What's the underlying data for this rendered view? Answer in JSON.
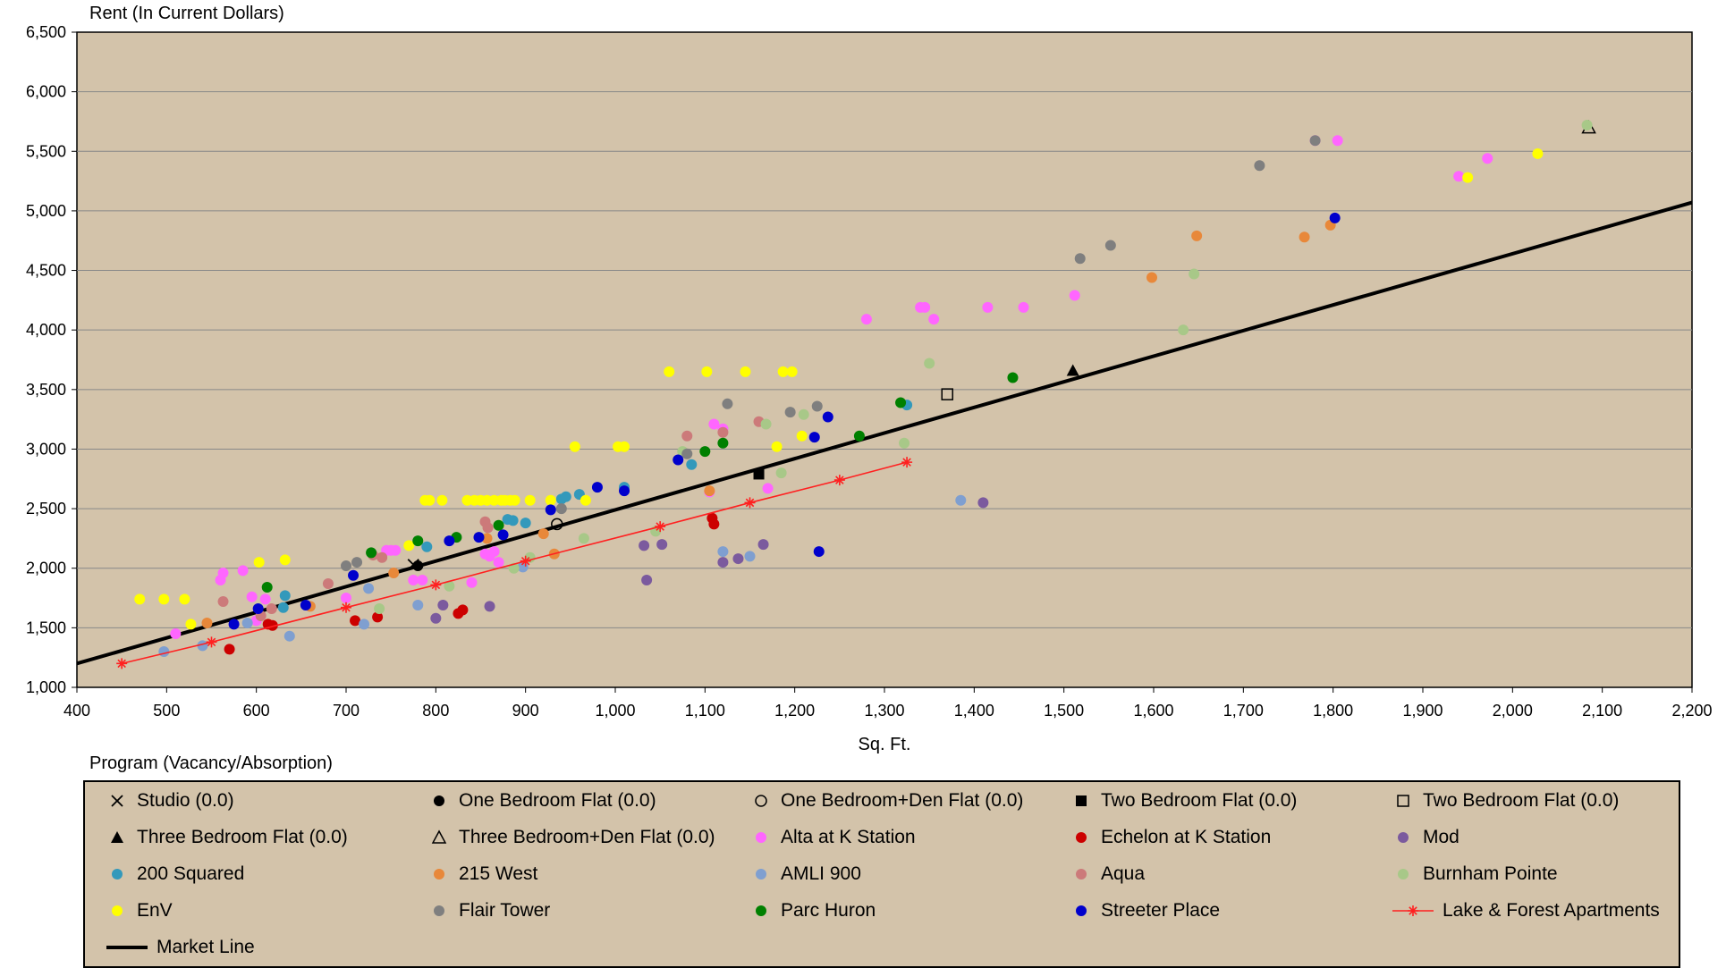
{
  "chart_data": {
    "type": "scatter",
    "ylabel": "Rent (In Current Dollars)",
    "xlabel": "Sq. Ft.",
    "xlim": [
      400,
      2200
    ],
    "ylim": [
      1000,
      6500
    ],
    "x_ticks": [
      "400",
      "500",
      "600",
      "700",
      "800",
      "900",
      "1,000",
      "1,100",
      "1,200",
      "1,300",
      "1,400",
      "1,500",
      "1,600",
      "1,700",
      "1,800",
      "1,900",
      "2,000",
      "2,100",
      "2,200"
    ],
    "y_ticks": [
      "1,000",
      "1,500",
      "2,000",
      "2,500",
      "3,000",
      "3,500",
      "4,000",
      "4,500",
      "5,000",
      "5,500",
      "6,000",
      "6,500"
    ],
    "grid": "horizontal",
    "plot_background": "#d3c3aa",
    "legend_title": "Program (Vacancy/Absorption)",
    "legend": [
      {
        "label": "Studio (0.0)",
        "marker": "x",
        "color": "#000000"
      },
      {
        "label": "One Bedroom Flat (0.0)",
        "marker": "circle",
        "color": "#000000"
      },
      {
        "label": "One Bedroom+Den Flat (0.0)",
        "marker": "circle-open",
        "color": "#000000"
      },
      {
        "label": "Two Bedroom Flat (0.0)",
        "marker": "square",
        "color": "#000000"
      },
      {
        "label": "Two Bedroom Flat (0.0)",
        "marker": "square-open",
        "color": "#000000"
      },
      {
        "label": "Three Bedroom Flat (0.0)",
        "marker": "triangle",
        "color": "#000000"
      },
      {
        "label": "Three Bedroom+Den Flat (0.0)",
        "marker": "triangle-open",
        "color": "#000000"
      },
      {
        "label": "Alta at K Station",
        "marker": "circle",
        "color": "#ff66ff"
      },
      {
        "label": "Echelon at K Station",
        "marker": "circle",
        "color": "#cc0000"
      },
      {
        "label": "Mod",
        "marker": "circle",
        "color": "#7b5a9e"
      },
      {
        "label": "200 Squared",
        "marker": "circle",
        "color": "#3399bb"
      },
      {
        "label": "215 West",
        "marker": "circle",
        "color": "#e8883a"
      },
      {
        "label": "AMLI 900",
        "marker": "circle",
        "color": "#7f9fd0"
      },
      {
        "label": "Aqua",
        "marker": "circle",
        "color": "#cc7a7a"
      },
      {
        "label": "Burnham Pointe",
        "marker": "circle",
        "color": "#a8c888"
      },
      {
        "label": "EnV",
        "marker": "circle",
        "color": "#ffff00"
      },
      {
        "label": "Flair Tower",
        "marker": "circle",
        "color": "#7f7f7f"
      },
      {
        "label": "Parc Huron",
        "marker": "circle",
        "color": "#008000"
      },
      {
        "label": "Streeter Place",
        "marker": "circle",
        "color": "#0000cc"
      },
      {
        "label": "Lake & Forest Apartments",
        "marker": "star-line",
        "color": "#ff2020"
      },
      {
        "label": "Market Line",
        "marker": "line",
        "color": "#000000"
      }
    ],
    "market_line": {
      "x": [
        400,
        2200
      ],
      "y": [
        1200,
        5070
      ]
    },
    "series": [
      {
        "name": "Studio (0.0)",
        "marker": "x",
        "color": "#000000",
        "x": [
          775
        ],
        "y": [
          2030
        ]
      },
      {
        "name": "One Bedroom Flat (0.0)",
        "marker": "circle",
        "color": "#000000",
        "x": [
          780
        ],
        "y": [
          2020
        ]
      },
      {
        "name": "One Bedroom+Den Flat (0.0)",
        "marker": "circle-open",
        "color": "#000000",
        "x": [
          935
        ],
        "y": [
          2370
        ]
      },
      {
        "name": "Two Bedroom Flat (0.0)",
        "marker": "square",
        "color": "#000000",
        "x": [
          1160
        ],
        "y": [
          2790
        ]
      },
      {
        "name": "Two Bedroom Flat (0.0)",
        "marker": "square-open",
        "color": "#000000",
        "x": [
          1370
        ],
        "y": [
          3460
        ]
      },
      {
        "name": "Three Bedroom Flat (0.0)",
        "marker": "triangle",
        "color": "#000000",
        "x": [
          1510
        ],
        "y": [
          3660
        ]
      },
      {
        "name": "Three Bedroom+Den Flat (0.0)",
        "marker": "triangle-open",
        "color": "#000000",
        "x": [
          2085
        ],
        "y": [
          5700
        ]
      },
      {
        "name": "Alta at K Station",
        "marker": "circle",
        "color": "#ff66ff",
        "x": [
          510,
          560,
          563,
          585,
          595,
          600,
          610,
          700,
          745,
          750,
          755,
          775,
          785,
          840,
          855,
          860,
          865,
          870,
          1105,
          1110,
          1120,
          1170,
          1280,
          1340,
          1345,
          1355,
          1415,
          1455,
          1512,
          1780,
          1805,
          1940,
          1972
        ],
        "y": [
          1450,
          1900,
          1960,
          1980,
          1760,
          1560,
          1740,
          1750,
          2150,
          2150,
          2150,
          1900,
          1900,
          1880,
          2120,
          2100,
          2140,
          2050,
          2640,
          3210,
          3170,
          2670,
          4090,
          4190,
          4190,
          4090,
          4190,
          4190,
          4290,
          5590,
          5590,
          5290,
          5440
        ]
      },
      {
        "name": "Echelon at K Station",
        "marker": "circle",
        "color": "#cc0000",
        "x": [
          570,
          613,
          618,
          710,
          735,
          825,
          830,
          1108,
          1110
        ],
        "y": [
          1320,
          1530,
          1520,
          1560,
          1590,
          1620,
          1650,
          2420,
          2370
        ]
      },
      {
        "name": "Mod",
        "marker": "circle",
        "color": "#7b5a9e",
        "x": [
          800,
          808,
          860,
          1032,
          1035,
          1052,
          1120,
          1137,
          1165,
          1410
        ],
        "y": [
          1580,
          1690,
          1680,
          2190,
          1900,
          2200,
          2050,
          2080,
          2200,
          2550
        ]
      },
      {
        "name": "200 Squared",
        "marker": "circle",
        "color": "#3399bb",
        "x": [
          630,
          632,
          790,
          880,
          886,
          900,
          940,
          945,
          960,
          1010,
          1085,
          1325
        ],
        "y": [
          1670,
          1770,
          2180,
          2410,
          2400,
          2380,
          2580,
          2600,
          2620,
          2680,
          2870,
          3370
        ]
      },
      {
        "name": "215 West",
        "marker": "circle",
        "color": "#e8883a",
        "x": [
          545,
          660,
          753,
          857,
          920,
          932,
          1105,
          1598,
          1648,
          1768,
          1797
        ],
        "y": [
          1540,
          1680,
          1960,
          2250,
          2290,
          2120,
          2650,
          4440,
          4790,
          4780,
          4880
        ]
      },
      {
        "name": "AMLI 900",
        "marker": "circle",
        "color": "#7f9fd0",
        "x": [
          497,
          540,
          590,
          637,
          720,
          725,
          780,
          897,
          1120,
          1150,
          1385
        ],
        "y": [
          1300,
          1350,
          1540,
          1430,
          1530,
          1830,
          1690,
          2010,
          2140,
          2100,
          2570
        ]
      },
      {
        "name": "Aqua",
        "marker": "circle",
        "color": "#cc7a7a",
        "x": [
          563,
          605,
          617,
          680,
          730,
          740,
          855,
          858,
          1080,
          1120,
          1160
        ],
        "y": [
          1720,
          1600,
          1660,
          1870,
          2110,
          2090,
          2390,
          2340,
          3110,
          3140,
          3230
        ]
      },
      {
        "name": "Burnham Pointe",
        "marker": "circle",
        "color": "#a8c888",
        "x": [
          737,
          815,
          887,
          905,
          965,
          1045,
          1075,
          1168,
          1185,
          1210,
          1322,
          1350,
          1633,
          1645,
          2083
        ],
        "y": [
          1660,
          1850,
          2000,
          2090,
          2250,
          2310,
          2980,
          3210,
          2800,
          3290,
          3050,
          3720,
          4000,
          4470,
          5720
        ]
      },
      {
        "name": "EnV",
        "marker": "circle",
        "color": "#ffff00",
        "x": [
          470,
          497,
          520,
          527,
          603,
          632,
          770,
          788,
          793,
          807,
          835,
          843,
          850,
          857,
          865,
          873,
          877,
          883,
          888,
          905,
          928,
          967,
          955,
          1003,
          1010,
          1060,
          1102,
          1145,
          1180,
          1187,
          1197,
          1208,
          1950,
          2028
        ],
        "y": [
          1740,
          1740,
          1740,
          1530,
          2050,
          2070,
          2190,
          2570,
          2570,
          2570,
          2570,
          2570,
          2570,
          2570,
          2570,
          2570,
          2570,
          2570,
          2570,
          2570,
          2570,
          2570,
          3020,
          3020,
          3020,
          3650,
          3650,
          3650,
          3020,
          3650,
          3650,
          3110,
          5280,
          5480
        ]
      },
      {
        "name": "Flair Tower",
        "marker": "circle",
        "color": "#7f7f7f",
        "x": [
          700,
          712,
          940,
          1080,
          1125,
          1195,
          1225,
          1518,
          1552,
          1718,
          1780
        ],
        "y": [
          2020,
          2050,
          2500,
          2960,
          3380,
          3310,
          3360,
          4600,
          4710,
          5380,
          5590
        ]
      },
      {
        "name": "Parc Huron",
        "marker": "circle",
        "color": "#008000",
        "x": [
          612,
          728,
          780,
          823,
          870,
          1100,
          1120,
          1272,
          1318,
          1443
        ],
        "y": [
          1840,
          2130,
          2230,
          2260,
          2360,
          2980,
          3050,
          3110,
          3390,
          3600
        ]
      },
      {
        "name": "Streeter Place",
        "marker": "circle",
        "color": "#0000cc",
        "x": [
          575,
          602,
          655,
          708,
          815,
          848,
          875,
          928,
          980,
          1010,
          1070,
          1222,
          1227,
          1237,
          1802
        ],
        "y": [
          1530,
          1660,
          1690,
          1940,
          2230,
          2260,
          2280,
          2490,
          2680,
          2650,
          2910,
          3100,
          2140,
          3270,
          4940
        ]
      },
      {
        "name": "Lake & Forest Apartments",
        "marker": "star-line",
        "color": "#ff2020",
        "x": [
          450,
          550,
          700,
          800,
          900,
          1050,
          1150,
          1250,
          1325
        ],
        "y": [
          1200,
          1380,
          1670,
          1860,
          2060,
          2350,
          2550,
          2740,
          2890
        ]
      }
    ]
  }
}
